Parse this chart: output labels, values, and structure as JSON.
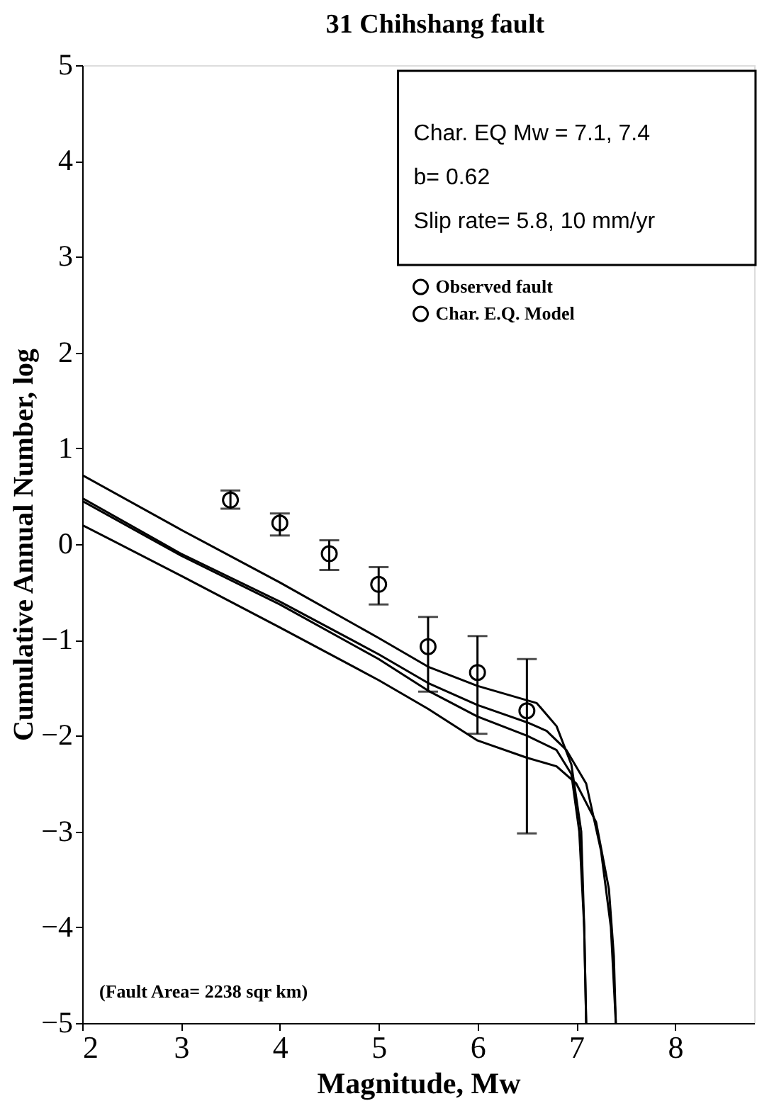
{
  "chart_data": {
    "type": "line",
    "title": "31 Chihshang fault",
    "xlabel": "Magnitude, Mw",
    "ylabel": "Cumulative Annual Number, log",
    "xlim": [
      2,
      8.8
    ],
    "xticks": [
      2,
      3,
      4,
      5,
      6,
      7,
      8
    ],
    "ylim": [
      -5,
      5
    ],
    "yticks": [
      -5,
      -4,
      -3,
      -2,
      -1,
      0,
      1,
      2,
      3,
      4,
      5
    ],
    "grid": false,
    "legend": "top right",
    "annotations": [
      "Char. EQ Mw = 7.1, 7.4",
      "b= 0.62",
      "Slip rate= 5.8, 10 mm/yr",
      "(Fault Area= 2238 sqr km)"
    ],
    "series": [
      {
        "name": "Observed fault",
        "type": "scatter",
        "marker": "circle",
        "color": "#000000",
        "x": [
          3.5,
          4,
          4.5,
          5,
          5.5,
          6,
          6.5
        ],
        "values": [
          0.46,
          0.22,
          -0.1,
          -0.42,
          -1.07,
          -1.34,
          -1.74
        ],
        "errors": [
          [
            0.37,
            0.56
          ],
          [
            0.09,
            0.32
          ],
          [
            -0.27,
            0.04
          ],
          [
            -0.63,
            -0.24
          ],
          [
            -1.54,
            -0.76
          ],
          [
            -1.98,
            -0.96
          ],
          [
            -3.02,
            -1.2
          ]
        ]
      },
      {
        "name": "Char. E.Q. Model",
        "type": "line",
        "color": "#000000",
        "x": [
          2,
          3,
          4,
          5,
          5.5,
          6,
          6.5,
          6.6,
          6.8,
          6.95,
          7.05,
          7.08,
          7.1
        ],
        "values": [
          0.72,
          0.15,
          -0.4,
          -0.98,
          -1.28,
          -1.48,
          -1.63,
          -1.66,
          -1.9,
          -2.3,
          -3.0,
          -4.0,
          -5
        ]
      },
      {
        "type": "line",
        "color": "#000000",
        "x": [
          2,
          3,
          4,
          5,
          5.5,
          6,
          6.5,
          6.7,
          6.9,
          7.1,
          7.25,
          7.35,
          7.4
        ],
        "values": [
          0.48,
          -0.1,
          -0.6,
          -1.15,
          -1.45,
          -1.68,
          -1.86,
          -1.95,
          -2.15,
          -2.5,
          -3.2,
          -4.0,
          -5
        ]
      },
      {
        "type": "line",
        "color": "#000000",
        "x": [
          2,
          3,
          4,
          5,
          5.5,
          6,
          6.5,
          6.8,
          6.95,
          7.03,
          7.08,
          7.1
        ],
        "values": [
          0.45,
          -0.12,
          -0.63,
          -1.2,
          -1.53,
          -1.8,
          -2.0,
          -2.15,
          -2.4,
          -3.0,
          -4,
          -5
        ]
      },
      {
        "type": "line",
        "color": "#000000",
        "x": [
          2,
          3,
          4,
          5,
          5.5,
          6,
          6.5,
          6.8,
          7.0,
          7.2,
          7.33,
          7.38,
          7.4
        ],
        "values": [
          0.2,
          -0.33,
          -0.87,
          -1.42,
          -1.72,
          -2.05,
          -2.23,
          -2.32,
          -2.5,
          -2.9,
          -3.6,
          -4.3,
          -5
        ]
      }
    ]
  }
}
